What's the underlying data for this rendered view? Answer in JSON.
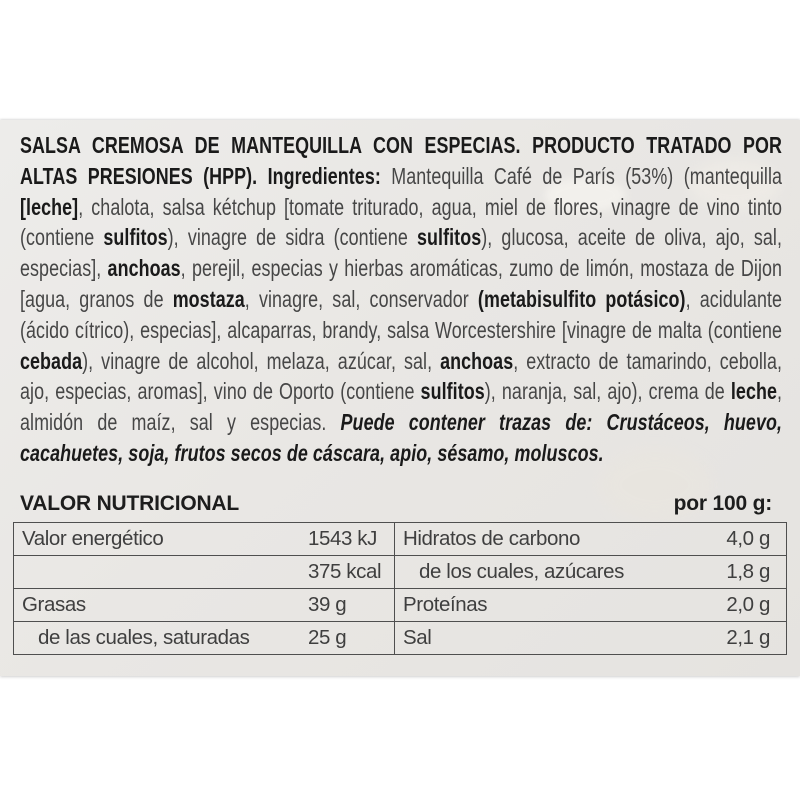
{
  "label": {
    "ingredients": {
      "segments": [
        {
          "style": "bold",
          "text": "SALSA CREMOSA DE MANTEQUILLA CON ESPECIAS. PRODUCTO TRATADO POR ALTAS PRESIONES (HPP). Ingredientes: "
        },
        {
          "style": "regular",
          "text": "Mantequilla Café de París (53%) (mantequilla "
        },
        {
          "style": "bold",
          "text": "[leche]"
        },
        {
          "style": "regular",
          "text": ", chalota, salsa kétchup [tomate triturado, agua, miel de flores, vinagre de vino tinto (contiene "
        },
        {
          "style": "bold",
          "text": "sulfitos"
        },
        {
          "style": "regular",
          "text": "), vinagre de sidra (contiene "
        },
        {
          "style": "bold",
          "text": "sulfitos"
        },
        {
          "style": "regular",
          "text": "), glucosa, aceite de oliva, ajo, sal, especias], "
        },
        {
          "style": "bold",
          "text": "anchoas"
        },
        {
          "style": "regular",
          "text": ", perejil, especias y hierbas aromáticas, zumo de limón, mostaza de Dijon [agua, granos de "
        },
        {
          "style": "bold",
          "text": "mostaza"
        },
        {
          "style": "regular",
          "text": ", vinagre, sal, conservador "
        },
        {
          "style": "bold",
          "text": "(metabisulfito potásico)"
        },
        {
          "style": "regular",
          "text": ", acidulante (ácido cítrico), especias], alcaparras, brandy, salsa Worcestershire [vinagre de malta (contiene "
        },
        {
          "style": "bold",
          "text": "cebada"
        },
        {
          "style": "regular",
          "text": "), vinagre de alcohol, melaza, azúcar, sal, "
        },
        {
          "style": "bold",
          "text": "anchoas"
        },
        {
          "style": "regular",
          "text": ", extracto de tamarindo, cebolla, ajo, especias, aromas], vino de Oporto (contiene "
        },
        {
          "style": "bold",
          "text": "sulfitos"
        },
        {
          "style": "regular",
          "text": "), naranja, sal, ajo), crema de "
        },
        {
          "style": "bold",
          "text": "leche"
        },
        {
          "style": "regular",
          "text": ", almidón de maíz, sal y especias. "
        },
        {
          "style": "bolditalic",
          "text": "Puede contener trazas de: Crustáceos, huevo, cacahuetes, soja, frutos secos de cáscara, apio, sésamo, moluscos."
        }
      ]
    },
    "nutrition": {
      "title": "VALOR NUTRICIONAL",
      "per_label": "por 100 g:",
      "left_rows": [
        {
          "label": "Valor energético",
          "value": "1543 kJ"
        },
        {
          "label": "",
          "value": "375 kcal"
        },
        {
          "label": "Grasas",
          "value": "39 g"
        },
        {
          "label": "de las cuales, saturadas",
          "value": "25 g"
        }
      ],
      "right_rows": [
        {
          "label": "Hidratos de carbono",
          "value": "4,0 g"
        },
        {
          "label": "de los cuales, azúcares",
          "value": "1,8 g"
        },
        {
          "label": "Proteínas",
          "value": "2,0 g"
        },
        {
          "label": "Sal",
          "value": "2,1 g"
        }
      ]
    }
  }
}
